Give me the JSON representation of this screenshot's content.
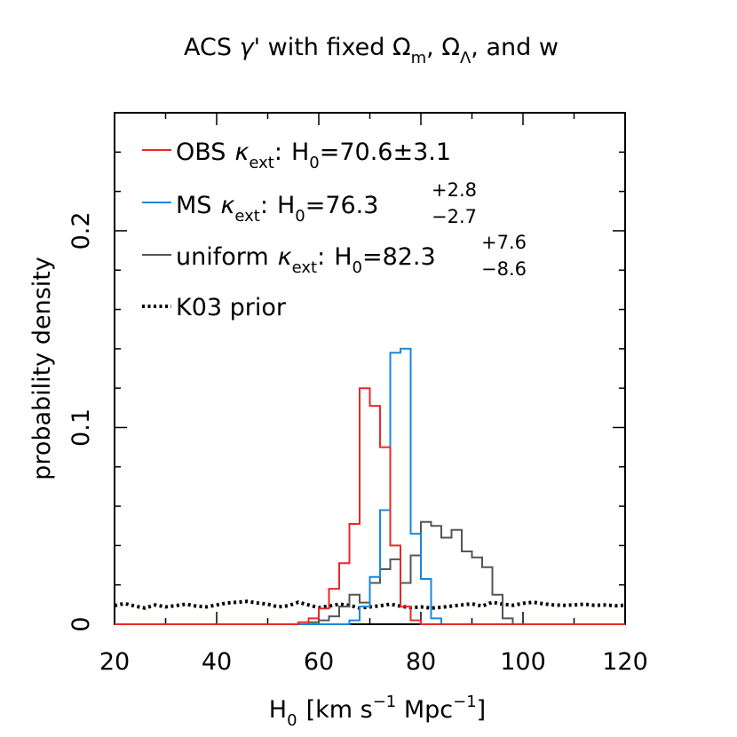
{
  "chart_data": {
    "type": "histogram",
    "title": "ACS γ' with fixed Ωm, ΩΛ, and w",
    "title_parts": {
      "prefix": "ACS ",
      "gamma": "γ'",
      "mid": " with fixed ",
      "omega": "Ω",
      "sub_m": "m",
      "comma1": ", ",
      "sub_lambda": "Λ",
      "suffix": ", and w"
    },
    "xlabel": "H0 [km s^-1 Mpc^-1]",
    "xlabel_parts": {
      "h": "H",
      "h_sub": "0",
      "units1": "[km s",
      "exp1": "−1",
      "units2": " Mpc",
      "exp2": "−1",
      "close": "]"
    },
    "ylabel": "probability density",
    "xlim": [
      20,
      120
    ],
    "ylim": [
      0,
      0.26
    ],
    "x_ticks": [
      20,
      40,
      60,
      80,
      100,
      120
    ],
    "y_ticks": [
      0,
      0.1,
      0.2
    ],
    "y_tick_labels": [
      "0",
      "0.1",
      "0.2"
    ],
    "bin_edges": [
      56,
      58,
      60,
      62,
      64,
      66,
      68,
      70,
      72,
      74,
      76,
      78,
      80,
      82,
      84,
      86,
      88,
      90,
      92,
      94,
      96,
      98,
      100
    ],
    "series": [
      {
        "name": "OBS",
        "color": "#e8282a",
        "style": "solid",
        "values": [
          0.001,
          0.003,
          0.008,
          0.018,
          0.031,
          0.051,
          0.12,
          0.111,
          0.09,
          0.04,
          0.009,
          0.002,
          0,
          0,
          0,
          0,
          0,
          0,
          0,
          0,
          0,
          0
        ]
      },
      {
        "name": "MS",
        "color": "#1a86e0",
        "style": "solid",
        "values": [
          0,
          0,
          0,
          0,
          0,
          0.002,
          0.009,
          0.024,
          0.058,
          0.138,
          0.14,
          0.046,
          0.023,
          0.003,
          0,
          0,
          0,
          0,
          0,
          0,
          0,
          0
        ]
      },
      {
        "name": "uniform",
        "color": "#555555",
        "style": "solid",
        "values": [
          0,
          0.001,
          0.002,
          0.004,
          0.009,
          0.015,
          0.011,
          0.021,
          0.028,
          0.033,
          0.021,
          0.035,
          0.052,
          0.05,
          0.044,
          0.048,
          0.037,
          0.034,
          0.029,
          0.015,
          0.003,
          0
        ]
      }
    ],
    "prior": {
      "name": "K03 prior",
      "style": "dotted",
      "color": "#000000",
      "x": [
        20,
        22,
        24,
        26,
        28,
        30,
        32,
        34,
        36,
        38,
        40,
        42,
        44,
        46,
        48,
        50,
        52,
        54,
        56,
        58,
        60,
        62,
        64,
        66,
        68,
        70,
        72,
        74,
        76,
        78,
        80,
        82,
        84,
        86,
        88,
        90,
        92,
        94,
        96,
        98,
        100,
        102,
        104,
        106,
        108,
        110,
        112,
        114,
        116,
        118,
        120
      ],
      "y": [
        0.0095,
        0.0105,
        0.0092,
        0.0082,
        0.0098,
        0.0088,
        0.0095,
        0.0102,
        0.0092,
        0.0088,
        0.0098,
        0.0108,
        0.0112,
        0.0116,
        0.0108,
        0.0102,
        0.0088,
        0.0094,
        0.0112,
        0.0098,
        0.0084,
        0.0092,
        0.0102,
        0.0096,
        0.0082,
        0.0088,
        0.0094,
        0.0102,
        0.0092,
        0.0084,
        0.0088,
        0.0082,
        0.0086,
        0.0092,
        0.0098,
        0.0104,
        0.0092,
        0.0112,
        0.0102,
        0.0096,
        0.0106,
        0.0112,
        0.0104,
        0.0098,
        0.0096,
        0.0098,
        0.0102,
        0.0096,
        0.0098,
        0.0094,
        0.0096
      ]
    },
    "legend": {
      "position": "top-left",
      "entries": [
        {
          "series": "OBS",
          "label": "OBS",
          "kappa": "κ",
          "kappa_sub": "ext",
          "colon": ":",
          "h": "H",
          "h_sub": "0",
          "eq": "=70.6±3.1",
          "sup": "",
          "sub": ""
        },
        {
          "series": "MS",
          "label": "MS",
          "kappa": "κ",
          "kappa_sub": "ext",
          "colon": ":",
          "h": "H",
          "h_sub": "0",
          "eq": "=76.3",
          "sup": "+2.8",
          "sub": "−2.7"
        },
        {
          "series": "uniform",
          "label": "uniform",
          "kappa": "κ",
          "kappa_sub": "ext",
          "colon": ":",
          "h": "H",
          "h_sub": "0",
          "eq": "=82.3",
          "sup": "+7.6",
          "sub": "−8.6"
        },
        {
          "series": "prior",
          "label": "K03 prior"
        }
      ]
    }
  }
}
